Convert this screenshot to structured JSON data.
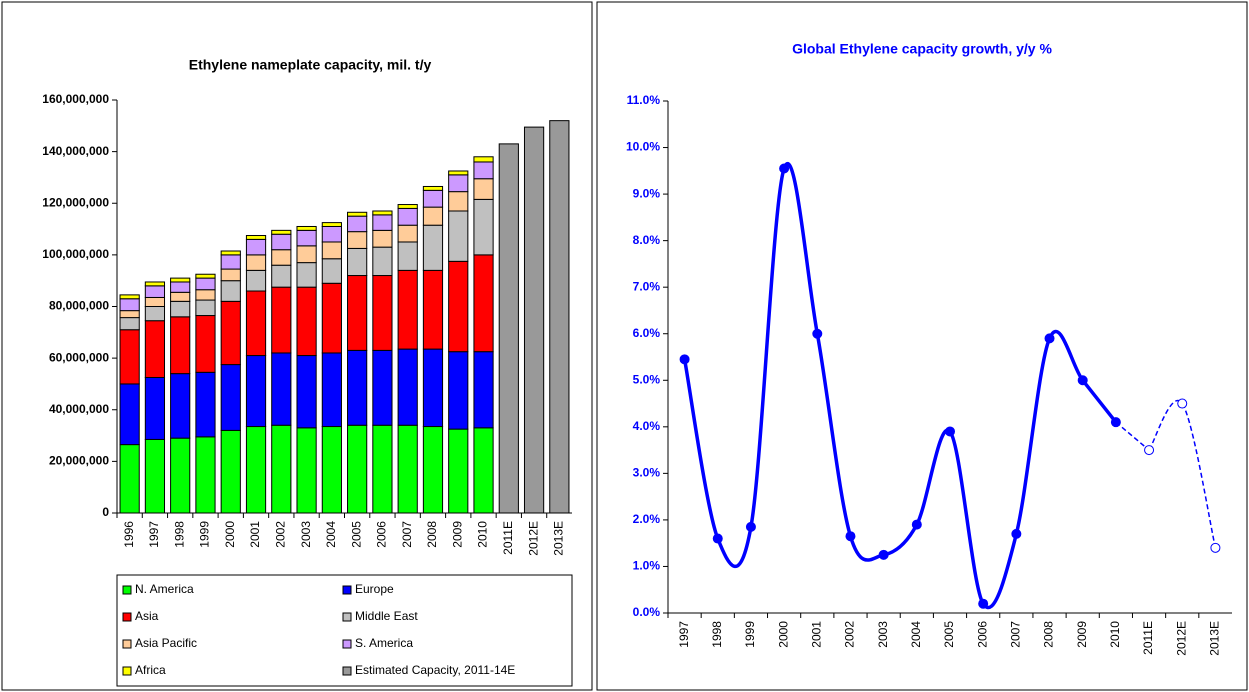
{
  "chart_data": [
    {
      "type": "stacked_bar",
      "title": "Ethylene nameplate capacity, mil. t/y",
      "categories": [
        "1996",
        "1997",
        "1998",
        "1999",
        "2000",
        "2001",
        "2002",
        "2003",
        "2004",
        "2005",
        "2006",
        "2007",
        "2008",
        "2009",
        "2010",
        "2011E",
        "2012E",
        "2013E"
      ],
      "series": [
        {
          "name": "N. America",
          "color": "#00ff00",
          "values": [
            26500000,
            28500000,
            29000000,
            29500000,
            32000000,
            33500000,
            34000000,
            33000000,
            33500000,
            34000000,
            34000000,
            34000000,
            33500000,
            32500000,
            33000000,
            null,
            null,
            null
          ]
        },
        {
          "name": "Europe",
          "color": "#0000ff",
          "values": [
            23500000,
            24000000,
            25000000,
            25000000,
            25500000,
            27500000,
            28000000,
            28000000,
            28500000,
            29000000,
            29000000,
            29500000,
            30000000,
            30000000,
            29500000,
            null,
            null,
            null
          ]
        },
        {
          "name": "Asia",
          "color": "#ff0000",
          "values": [
            21000000,
            22000000,
            22000000,
            22000000,
            24500000,
            25000000,
            25500000,
            26500000,
            27000000,
            29000000,
            29000000,
            30500000,
            30500000,
            35000000,
            37500000,
            null,
            null,
            null
          ]
        },
        {
          "name": "Middle East",
          "color": "#c0c0c0",
          "values": [
            4700000,
            5500000,
            6000000,
            6000000,
            8000000,
            8000000,
            8500000,
            9500000,
            9500000,
            10500000,
            11000000,
            11000000,
            17500000,
            19500000,
            21500000,
            null,
            null,
            null
          ]
        },
        {
          "name": "Asia Pacific",
          "color": "#ffcc99",
          "values": [
            2700000,
            3500000,
            3500000,
            4000000,
            4500000,
            6000000,
            6000000,
            6500000,
            6500000,
            6500000,
            6500000,
            6500000,
            7000000,
            7500000,
            8000000,
            null,
            null,
            null
          ]
        },
        {
          "name": "S. America",
          "color": "#cc99ff",
          "values": [
            4600000,
            4500000,
            4000000,
            4500000,
            5500000,
            6000000,
            6000000,
            6000000,
            6000000,
            6000000,
            6000000,
            6500000,
            6500000,
            6500000,
            6500000,
            null,
            null,
            null
          ]
        },
        {
          "name": "Africa",
          "color": "#ffff00",
          "values": [
            1500000,
            1500000,
            1500000,
            1500000,
            1500000,
            1500000,
            1500000,
            1500000,
            1500000,
            1500000,
            1500000,
            1500000,
            1500000,
            1500000,
            2000000,
            null,
            null,
            null
          ]
        },
        {
          "name": "Estimated Capacity, 2011-14E",
          "color": "#999999",
          "values": [
            null,
            null,
            null,
            null,
            null,
            null,
            null,
            null,
            null,
            null,
            null,
            null,
            null,
            null,
            null,
            143000000,
            149500000,
            152000000
          ]
        }
      ],
      "ylim": [
        0,
        160000000
      ],
      "yticks": [
        0,
        {
          "value": 20000000,
          "label": "20,000,000"
        },
        {
          "value": 40000000,
          "label": "40,000,000"
        },
        {
          "value": 60000000,
          "label": "60,000,000"
        },
        {
          "value": 80000000,
          "label": "80,000,000"
        },
        {
          "value": 100000000,
          "label": "100,000,000"
        },
        {
          "value": 120000000,
          "label": "120,000,000"
        },
        {
          "value": 140000000,
          "label": "140,000,000"
        },
        {
          "value": 160000000,
          "label": "160,000,000"
        }
      ],
      "grid": false,
      "legend": "bottom"
    },
    {
      "type": "line",
      "title": "Global Ethylene capacity growth, y/y %",
      "categories": [
        "1997",
        "1998",
        "1999",
        "2000",
        "2001",
        "2002",
        "2003",
        "2004",
        "2005",
        "2006",
        "2007",
        "2008",
        "2009",
        "2010",
        "2011E",
        "2012E",
        "2013E"
      ],
      "series": [
        {
          "color": "#0000ff",
          "style": "solid",
          "values": [
            5.45,
            1.6,
            1.85,
            9.55,
            6,
            1.65,
            1.25,
            1.9,
            3.9,
            0.2,
            1.7,
            5.9,
            5,
            4.1,
            null,
            null,
            null
          ]
        },
        {
          "color": "#0000ff",
          "style": "dashed",
          "values": [
            null,
            null,
            null,
            null,
            null,
            null,
            null,
            null,
            null,
            null,
            null,
            null,
            null,
            null,
            3.5,
            4.5,
            1.4
          ]
        }
      ],
      "ylim": [
        0,
        11
      ],
      "yticks": [
        {
          "value": 0,
          "label": "0.0%"
        },
        {
          "value": 1,
          "label": "1.0%"
        },
        {
          "value": 2,
          "label": "2.0%"
        },
        {
          "value": 3,
          "label": "3.0%"
        },
        {
          "value": 4,
          "label": "4.0%"
        },
        {
          "value": 5,
          "label": "5.0%"
        },
        {
          "value": 6,
          "label": "6.0%"
        },
        {
          "value": 7,
          "label": "7.0%"
        },
        {
          "value": 8,
          "label": "8.0%"
        },
        {
          "value": 9,
          "label": "9.0%"
        },
        {
          "value": 10,
          "label": "10.0%"
        },
        {
          "value": 11,
          "label": "11.0%"
        }
      ],
      "grid": false,
      "text_color": "#0000ff"
    }
  ]
}
